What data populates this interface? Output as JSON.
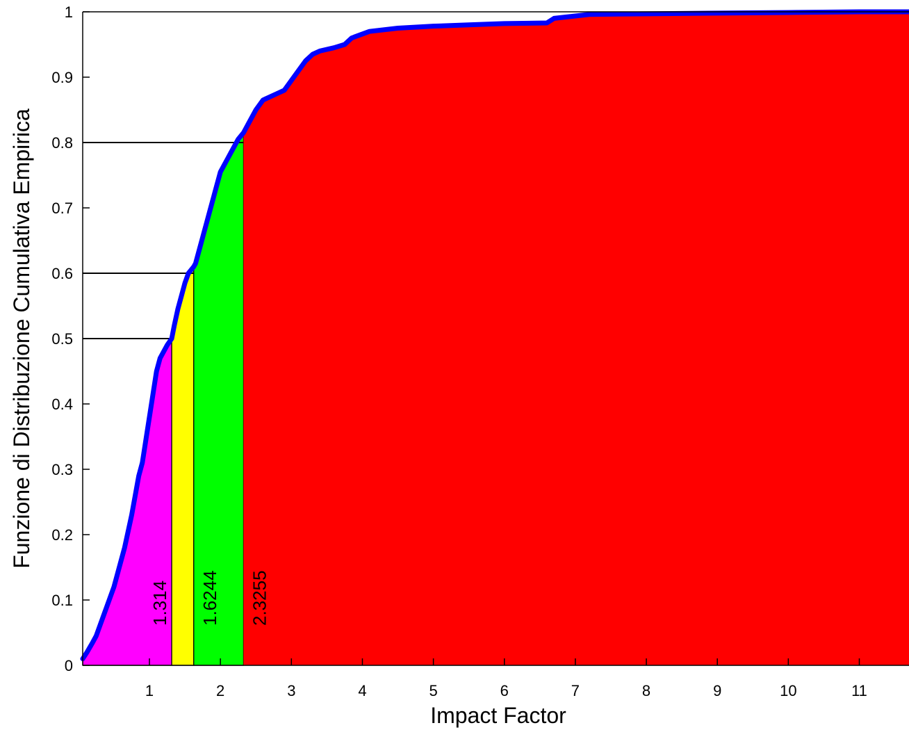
{
  "chart_data": {
    "type": "area",
    "xlabel": "Impact Factor",
    "ylabel": "Funzione di Distribuzione Cumulativa Empirica",
    "xlim": [
      0.06,
      11.7
    ],
    "ylim": [
      0,
      1
    ],
    "xticks": [
      1,
      2,
      3,
      4,
      5,
      6,
      7,
      8,
      9,
      10,
      11
    ],
    "yticks": [
      0,
      0.1,
      0.2,
      0.3,
      0.4,
      0.5,
      0.6,
      0.7,
      0.8,
      0.9,
      1
    ],
    "ytick_labels": [
      "0",
      "0.1",
      "0.2",
      "0.3",
      "0.4",
      "0.5",
      "0.6",
      "0.7",
      "0.8",
      "0.9",
      "1"
    ],
    "grid": false,
    "cdf_series": {
      "color": "#0000ff",
      "x": [
        0.06,
        0.12,
        0.2,
        0.25,
        0.3,
        0.35,
        0.4,
        0.45,
        0.5,
        0.55,
        0.6,
        0.65,
        0.7,
        0.75,
        0.8,
        0.85,
        0.9,
        0.95,
        1.0,
        1.05,
        1.1,
        1.15,
        1.2,
        1.25,
        1.314,
        1.35,
        1.4,
        1.45,
        1.5,
        1.55,
        1.6244,
        1.65,
        1.7,
        1.75,
        1.8,
        1.85,
        1.9,
        1.95,
        2.0,
        2.05,
        2.1,
        2.15,
        2.2,
        2.25,
        2.3255,
        2.4,
        2.5,
        2.6,
        2.8,
        2.9,
        3.0,
        3.1,
        3.2,
        3.3,
        3.4,
        3.6,
        3.75,
        3.85,
        4.1,
        4.5,
        5.0,
        5.5,
        6.0,
        6.6,
        6.7,
        7.2,
        8.0,
        9.0,
        10.0,
        11.0,
        11.7
      ],
      "y": [
        0.01,
        0.02,
        0.035,
        0.045,
        0.06,
        0.075,
        0.09,
        0.105,
        0.12,
        0.14,
        0.16,
        0.18,
        0.205,
        0.23,
        0.26,
        0.29,
        0.31,
        0.345,
        0.38,
        0.415,
        0.45,
        0.47,
        0.48,
        0.49,
        0.5,
        0.52,
        0.545,
        0.565,
        0.585,
        0.6,
        0.61,
        0.615,
        0.635,
        0.655,
        0.675,
        0.695,
        0.715,
        0.735,
        0.755,
        0.765,
        0.775,
        0.785,
        0.795,
        0.805,
        0.815,
        0.83,
        0.85,
        0.865,
        0.875,
        0.88,
        0.895,
        0.91,
        0.925,
        0.935,
        0.94,
        0.945,
        0.95,
        0.96,
        0.97,
        0.975,
        0.978,
        0.98,
        0.982,
        0.983,
        0.99,
        0.996,
        0.997,
        0.998,
        0.999,
        1.0,
        1.0
      ]
    },
    "regions": [
      {
        "color": "#ff00ff",
        "x_from": 0.06,
        "x_to": 1.314
      },
      {
        "color": "#ffff00",
        "x_from": 1.314,
        "x_to": 1.6244
      },
      {
        "color": "#00ff00",
        "x_from": 1.6244,
        "x_to": 2.3255
      },
      {
        "color": "#ff0000",
        "x_from": 2.3255,
        "x_to": 11.7
      }
    ],
    "thresholds": [
      {
        "x": 1.314,
        "y": 0.5,
        "label": "1.314"
      },
      {
        "x": 1.6244,
        "y": 0.6,
        "label": "1.6244"
      },
      {
        "x": 2.3255,
        "y": 0.8,
        "label": "2.3255"
      }
    ]
  }
}
